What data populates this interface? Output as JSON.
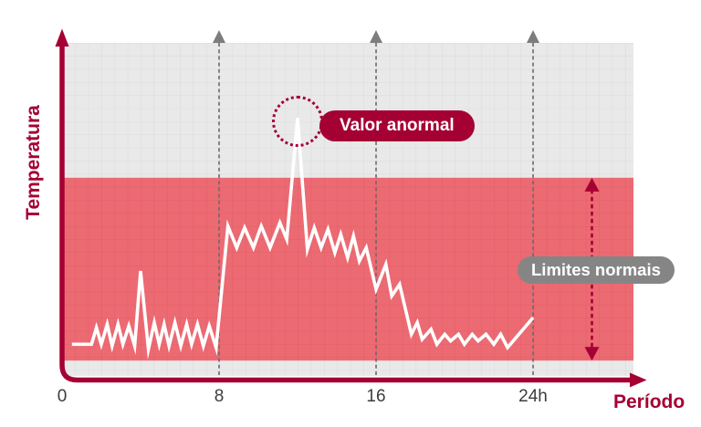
{
  "y_axis": {
    "label": "Temperatura"
  },
  "x_axis": {
    "label": "Período",
    "tick_labels": [
      "0",
      "8",
      "16",
      "24h"
    ]
  },
  "callouts": {
    "abnormal_label": "Valor anormal",
    "normal_label": "Limites normais"
  },
  "colors": {
    "crimson": "#A50034",
    "pink_band": "#EC6A72",
    "pink_grid": "#E35E69",
    "plot_bg": "#E9E9E9",
    "plot_grid": "#DADCDD",
    "guide": "#6B6B6B",
    "guide_arrow": "#7D7D7D",
    "normal_pill": "#858585",
    "tick_label": "#3C3C3C",
    "trace": "#FFFFFF"
  },
  "chart_data": {
    "type": "line",
    "title": "",
    "xlabel": "Período",
    "ylabel": "Temperatura",
    "x_unit": "hours",
    "x_ticks": [
      0,
      8,
      16,
      24
    ],
    "x_tick_labels": [
      "0",
      "8",
      "16",
      "24h"
    ],
    "xlim": [
      0,
      29
    ],
    "ylim": [
      0,
      100
    ],
    "y_tick_labels": [],
    "grid": true,
    "dashed_guides_x": [
      8,
      16,
      24
    ],
    "normal_band": {
      "y_min": 4.6,
      "y_max": 59.5,
      "label": "Limites normais"
    },
    "abnormal_point": {
      "x": 12,
      "y": 77.5,
      "label": "Valor anormal"
    },
    "range_arrow_x": 27,
    "series": [
      {
        "name": "Temperatura",
        "points": [
          [
            0.5,
            9.5
          ],
          [
            1.5,
            9.5
          ],
          [
            1.75,
            14.5
          ],
          [
            2.0,
            9.5
          ],
          [
            2.3,
            15.5
          ],
          [
            2.55,
            9
          ],
          [
            2.85,
            15.5
          ],
          [
            3.1,
            9.5
          ],
          [
            3.4,
            15
          ],
          [
            3.7,
            9
          ],
          [
            4.0,
            31.5
          ],
          [
            4.4,
            8
          ],
          [
            4.7,
            16
          ],
          [
            4.95,
            9.5
          ],
          [
            5.2,
            15.5
          ],
          [
            5.45,
            9
          ],
          [
            5.75,
            16
          ],
          [
            6.05,
            9
          ],
          [
            6.35,
            15.5
          ],
          [
            6.6,
            9.5
          ],
          [
            6.9,
            15.5
          ],
          [
            7.2,
            9
          ],
          [
            7.5,
            15
          ],
          [
            7.85,
            8.5
          ],
          [
            8.45,
            45
          ],
          [
            8.9,
            38.5
          ],
          [
            9.3,
            44.5
          ],
          [
            9.75,
            38.5
          ],
          [
            10.15,
            45
          ],
          [
            10.6,
            38.5
          ],
          [
            11.1,
            46
          ],
          [
            11.45,
            41
          ],
          [
            12.0,
            77.5
          ],
          [
            12.5,
            38
          ],
          [
            12.85,
            44.5
          ],
          [
            13.2,
            38.5
          ],
          [
            13.55,
            44
          ],
          [
            13.9,
            37
          ],
          [
            14.2,
            42.5
          ],
          [
            14.55,
            35.5
          ],
          [
            14.85,
            42
          ],
          [
            15.15,
            34.5
          ],
          [
            15.5,
            38.5
          ],
          [
            16.0,
            26
          ],
          [
            16.5,
            33.5
          ],
          [
            16.8,
            24
          ],
          [
            17.2,
            27.5
          ],
          [
            17.8,
            12.5
          ],
          [
            18.1,
            16
          ],
          [
            18.35,
            11
          ],
          [
            18.8,
            14
          ],
          [
            19.1,
            9.5
          ],
          [
            19.5,
            12.5
          ],
          [
            19.8,
            10.5
          ],
          [
            20.2,
            12.5
          ],
          [
            20.5,
            9.5
          ],
          [
            20.9,
            12.5
          ],
          [
            21.2,
            10.5
          ],
          [
            21.6,
            12.5
          ],
          [
            22.0,
            9.5
          ],
          [
            22.35,
            12.5
          ],
          [
            22.7,
            8.5
          ],
          [
            24.0,
            17.5
          ]
        ]
      }
    ]
  }
}
